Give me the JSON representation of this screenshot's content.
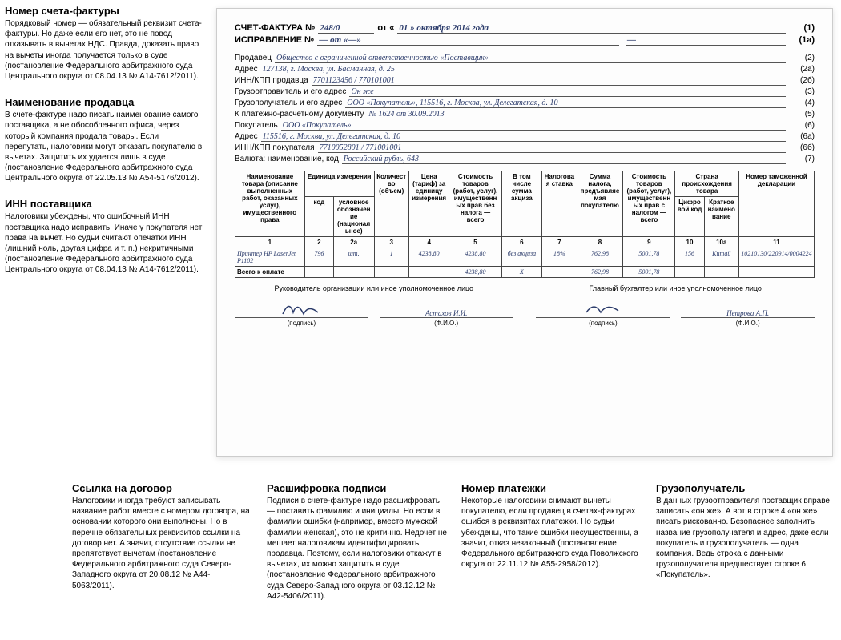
{
  "left_notes": [
    {
      "title": "Номер счета-фактуры",
      "body": "Порядковый номер — обязательный реквизит счета-фактуры. Но даже если его нет, это не повод отказывать в вычетах НДС. Правда, доказать право на вычеты иногда получается только в суде (постановление Федерального арбитражного суда Центрального округа от 08.04.13 № А14-7612/2011)."
    },
    {
      "title": "Наименование продавца",
      "body": "В счете-фактуре надо писать наименование самого поставщика, а не обособленного офиса, через который компания продала товары. Если перепутать, налоговики могут отказать покупателю в вычетах. Защитить их удается лишь в суде (постановление Федерального арбитражного суда Центрального округа от 22.05.13 № А54-5176/2012)."
    },
    {
      "title": "ИНН поставщика",
      "body": "Налоговики убеждены, что ошибочный ИНН поставщика надо исправить. Иначе у покупателя нет права на вычет. Но судьи считают опечатки ИНН (лишний ноль, другая цифра и т. п.) некритичными (постановление Федерального арбитражного суда Центрального округа от 08.04.13 № А14-7612/2011)."
    }
  ],
  "bottom_notes": [
    {
      "title": "Ссылка на договор",
      "body": "Налоговики иногда требуют записывать название работ вместе с номером договора, на основании которого они выполнены. Но в перечне обязательных реквизитов ссылки на договор нет. А значит, отсутствие ссылки не препятствует вычетам (постановление Федерального арбитражного суда Северо-Западного округа от 20.08.12 № А44-5063/2011)."
    },
    {
      "title": "Расшифровка подписи",
      "body": "Подписи в счете-фактуре надо расшифровать — поставить фамилию и инициалы. Но если в фамилии ошибки (например, вместо мужской фамилии женская), это не критично. Недочет не мешает налоговикам идентифицировать продавца. Поэтому, если налоговики откажут в вычетах, их можно защитить в суде (постановление Федерального арбитражного суда Северо-Западного округа от 03.12.12 № А42-5406/2011)."
    },
    {
      "title": "Номер платежки",
      "body": "Некоторые налоговики снимают вычеты покупателю, если продавец в счетах-фактурах ошибся в реквизитах платежки. Но судьи убеждены, что такие ошибки несущественны, а значит, отказ незаконный (постановление Федерального арбитражного суда Поволжского округа от 22.11.12 № А55-2958/2012)."
    },
    {
      "title": "Грузополучатель",
      "body": "В данных грузоотправителя поставщик вправе записать «он же». А вот в строке 4 «он же» писать рискованно. Безопаснее заполнить название грузополучателя и адрес, даже если покупатель и грузополучатель — одна компания. Ведь строка с данными грузополучателя предшествует строке 6 «Покупатель»."
    }
  ],
  "doc": {
    "header": {
      "label": "СЧЕТ-ФАКТУРА №",
      "num": "248/0",
      "ot": "от «",
      "date": "01  »   октября 2014 года",
      "right": "(1)"
    },
    "correction": {
      "label": "ИСПРАВЛЕНИЕ №",
      "val": "—  от «—»",
      "tail": "—",
      "right": "(1а)"
    },
    "rows": [
      {
        "label": "Продавец",
        "val": "Общество с ограниченной ответственностью «Поставщик»",
        "right": "(2)"
      },
      {
        "label": "Адрес",
        "val": "127138, г. Москва, ул. Басманная, д. 25",
        "right": "(2а)"
      },
      {
        "label": "ИНН/КПП продавца",
        "val": "7701123456 / 770101001",
        "right": "(2б)"
      },
      {
        "label": "Грузоотправитель и его адрес",
        "val": "Он же",
        "right": "(3)"
      },
      {
        "label": "Грузополучатель и его адрес",
        "val": "ООО «Покупатель», 115516, г. Москва, ул. Делегатская, д. 10",
        "right": "(4)"
      },
      {
        "label": "К платежно-расчетному документу",
        "val": "№ 1624            от  30.09.2013",
        "right": "(5)"
      },
      {
        "label": "Покупатель",
        "val": "ООО «Покупатель»",
        "right": "(6)"
      },
      {
        "label": "Адрес",
        "val": "115516, г. Москва, ул. Делегатская, д. 10",
        "right": "(6а)"
      },
      {
        "label": "ИНН/КПП покупателя",
        "val": "7710052801 / 771001001",
        "right": "(6б)"
      },
      {
        "label": "Валюта: наименование, код",
        "val": "Российский рубль, 643",
        "right": "(7)"
      }
    ],
    "table": {
      "head1": [
        "Наименование товара (описание выполненных работ, оказанных услуг), имущественного права",
        "Единица измерения",
        "",
        "Количество (объем)",
        "Цена (тариф) за единицу измерения",
        "Стоимость товаров (работ, услуг), имущественных прав без налога — всего",
        "В том числе сумма акциза",
        "Налоговая ставка",
        "Сумма налога, предъявляемая покупателю",
        "Стоимость товаров (работ, услуг), имущественных прав с налогом — всего",
        "Страна происхождения товара",
        "",
        "Номер таможенной декларации"
      ],
      "head2": [
        "",
        "код",
        "условное обозначение (национальное)",
        "",
        "",
        "",
        "",
        "",
        "",
        "",
        "Цифровой код",
        "Краткое наименование",
        ""
      ],
      "nums": [
        "1",
        "2",
        "2а",
        "3",
        "4",
        "5",
        "6",
        "7",
        "8",
        "9",
        "10",
        "10а",
        "11"
      ],
      "row": [
        "Принтер HP LaserJet P1102",
        "796",
        "шт.",
        "1",
        "4238,80",
        "4238,80",
        "без акциза",
        "18%",
        "762,98",
        "5001,78",
        "156",
        "Китай",
        "10210130/220914/0004224"
      ],
      "total_label": "Всего к оплате",
      "total": [
        "",
        "",
        "",
        "",
        "4238,80",
        "X",
        "",
        "762,98",
        "5001,78",
        "",
        "",
        ""
      ]
    },
    "sig": {
      "left_title": "Руководитель организации или иное уполномоченное лицо",
      "right_title": "Главный бухгалтер или иное уполномоченное лицо",
      "left_name": "Астахов И.И.",
      "right_name": "Петрова А.П.",
      "c1": "(подпись)",
      "c2": "(Ф.И.О.)"
    }
  }
}
